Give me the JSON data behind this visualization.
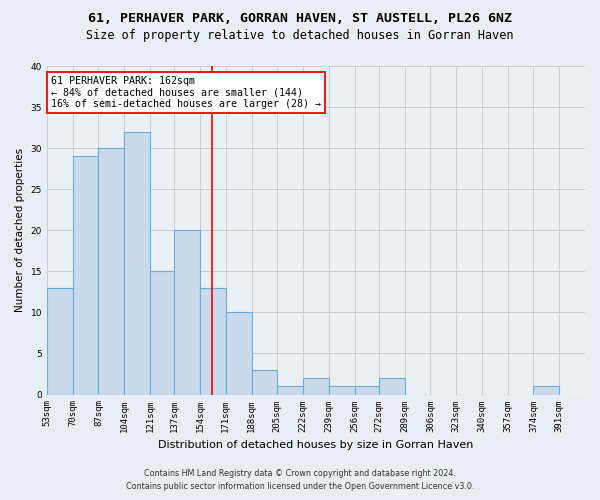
{
  "title": "61, PERHAVER PARK, GORRAN HAVEN, ST AUSTELL, PL26 6NZ",
  "subtitle": "Size of property relative to detached houses in Gorran Haven",
  "xlabel": "Distribution of detached houses by size in Gorran Haven",
  "ylabel": "Number of detached properties",
  "bar_edges": [
    53,
    70,
    87,
    104,
    121,
    137,
    154,
    171,
    188,
    205,
    222,
    239,
    256,
    272,
    289,
    306,
    323,
    340,
    357,
    374,
    391
  ],
  "bar_values": [
    13,
    29,
    30,
    32,
    15,
    20,
    13,
    10,
    3,
    1,
    2,
    1,
    1,
    2,
    0,
    0,
    0,
    0,
    0,
    1
  ],
  "bar_color": "#c9daea",
  "bar_edge_color": "#6aadd5",
  "bar_linewidth": 0.8,
  "vline_x": 162,
  "vline_color": "red",
  "vline_linewidth": 1.2,
  "ylim": [
    0,
    40
  ],
  "yticks": [
    0,
    5,
    10,
    15,
    20,
    25,
    30,
    35,
    40
  ],
  "annotation_text": "61 PERHAVER PARK: 162sqm\n← 84% of detached houses are smaller (144)\n16% of semi-detached houses are larger (28) →",
  "annotation_box_color": "white",
  "annotation_box_edge": "red",
  "footer_line1": "Contains HM Land Registry data © Crown copyright and database right 2024.",
  "footer_line2": "Contains public sector information licensed under the Open Government Licence v3.0.",
  "grid_color": "#c5cdd8",
  "bg_color": "#e8eef5",
  "plot_bg_color": "#eaf0f6",
  "title_fontsize": 9.5,
  "subtitle_fontsize": 8.5,
  "xlabel_fontsize": 8,
  "ylabel_fontsize": 7.5,
  "tick_fontsize": 6.5,
  "footer_fontsize": 5.8,
  "ann_fontsize": 7.2
}
